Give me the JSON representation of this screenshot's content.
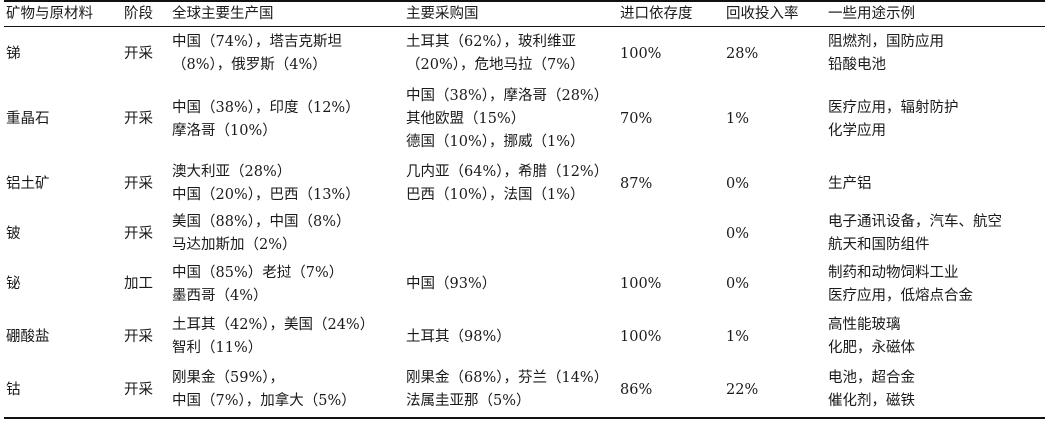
{
  "table": {
    "headers": [
      "矿物与原材料",
      "阶段",
      "全球主要生产国",
      "主要采购国",
      "进口依存度",
      "回收投入率",
      "一些用途示例"
    ],
    "rows": [
      {
        "mineral": "锑",
        "stage": "开采",
        "producers": [
          "中国（74%），塔吉克斯坦",
          "（8%），俄罗斯（4%）"
        ],
        "buyers": [
          "土耳其（62%），玻利维亚",
          "（20%），危地马拉（7%）"
        ],
        "import_dependence": "100%",
        "recycling_rate": "28%",
        "uses": [
          "阻燃剂，国防应用",
          "铅酸电池"
        ]
      },
      {
        "mineral": "重晶石",
        "stage": "开采",
        "producers": [
          "中国（38%），印度（12%）",
          "摩洛哥（10%）"
        ],
        "buyers": [
          "中国（38%），摩洛哥（28%）",
          "其他欧盟（15%）",
          "德国（10%），挪威（1%）"
        ],
        "import_dependence": "70%",
        "recycling_rate": "1%",
        "uses": [
          "医疗应用，辐射防护",
          "化学应用"
        ]
      },
      {
        "mineral": "铝土矿",
        "stage": "开采",
        "producers": [
          "澳大利亚（28%）",
          "中国（20%），巴西（13%）"
        ],
        "buyers": [
          "几内亚（64%），希腊（12%）",
          "巴西（10%），法国（1%）"
        ],
        "import_dependence": "87%",
        "recycling_rate": "0%",
        "uses": [
          "生产铝"
        ]
      },
      {
        "mineral": "铍",
        "stage": "开采",
        "producers": [
          "美国（88%），中国（8%）",
          "马达加斯加（2%）"
        ],
        "buyers": [],
        "import_dependence": "",
        "recycling_rate": "0%",
        "uses": [
          "电子通讯设备，汽车、航空",
          "航天和国防组件"
        ]
      },
      {
        "mineral": "铋",
        "stage": "加工",
        "producers": [
          "中国（85%）老挝（7%）",
          "墨西哥（4%）"
        ],
        "buyers": [
          "中国（93%）"
        ],
        "import_dependence": "100%",
        "recycling_rate": "0%",
        "uses": [
          "制药和动物饲料工业",
          "医疗应用，低熔点合金"
        ]
      },
      {
        "mineral": "硼酸盐",
        "stage": "开采",
        "producers": [
          "土耳其（42%），美国（24%）",
          "智利（11%）"
        ],
        "buyers": [
          "土耳其（98%）"
        ],
        "import_dependence": "100%",
        "recycling_rate": "1%",
        "uses": [
          "高性能玻璃",
          "化肥，永磁体"
        ]
      },
      {
        "mineral": "钴",
        "stage": "开采",
        "producers": [
          "刚果金（59%），",
          "中国（7%），加拿大（5%）"
        ],
        "buyers": [
          "刚果金（68%），芬兰（14%）",
          "法属圭亚那（5%）"
        ],
        "import_dependence": "86%",
        "recycling_rate": "22%",
        "uses": [
          "电池，超合金",
          "催化剂，磁铁"
        ]
      }
    ]
  }
}
